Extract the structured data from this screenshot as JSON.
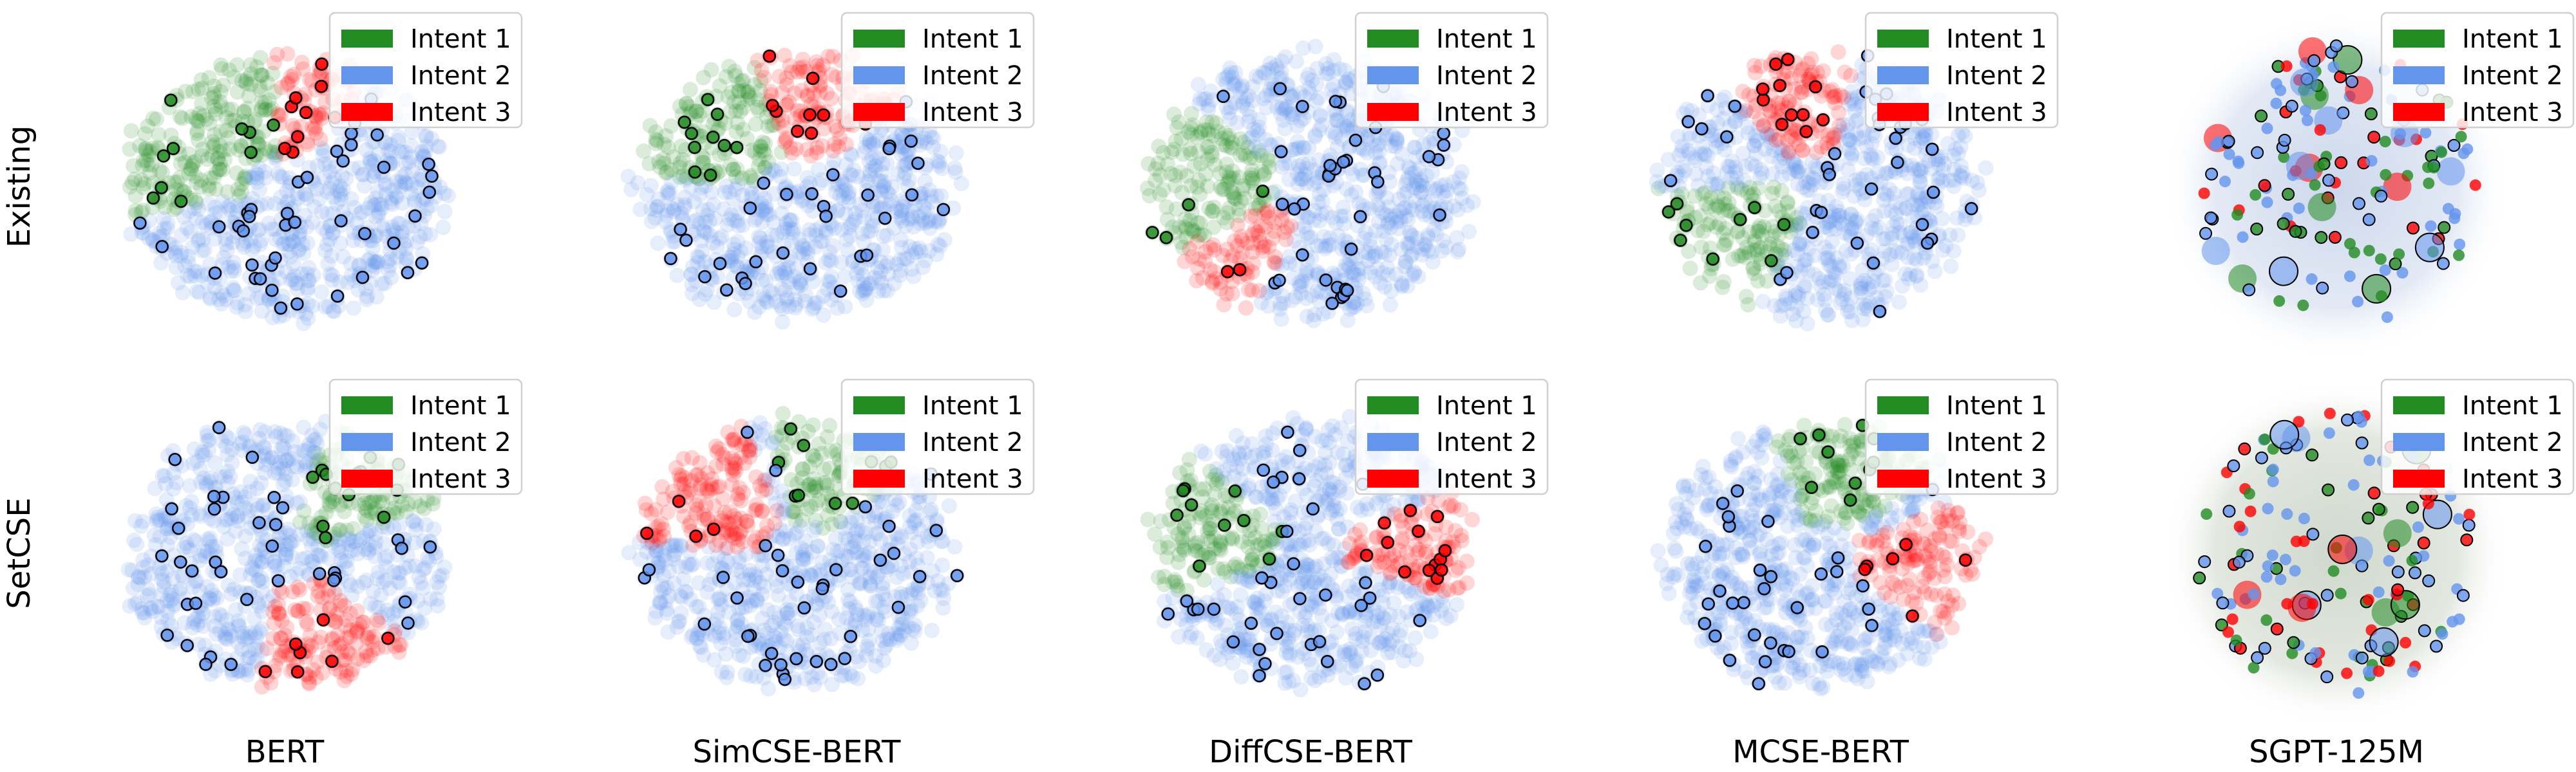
{
  "figure": {
    "row_labels": [
      "Existing",
      "SetCSE"
    ],
    "col_labels": [
      "BERT",
      "SimCSE-BERT",
      "DiffCSE-BERT",
      "MCSE-BERT",
      "SGPT-125M"
    ]
  },
  "chart_data": {
    "type": "scatter",
    "rows": [
      "Existing",
      "SetCSE"
    ],
    "columns": [
      "BERT",
      "SimCSE-BERT",
      "DiffCSE-BERT",
      "MCSE-BERT",
      "SGPT-125M"
    ],
    "legend": {
      "position": "top-right",
      "entries": [
        {
          "label": "Intent 1",
          "color": "#228B22"
        },
        {
          "label": "Intent 2",
          "color": "#6495ED"
        },
        {
          "label": "Intent 3",
          "color": "#FF0000"
        }
      ]
    },
    "highlight_color": "#000000",
    "axes_visible": false
  }
}
